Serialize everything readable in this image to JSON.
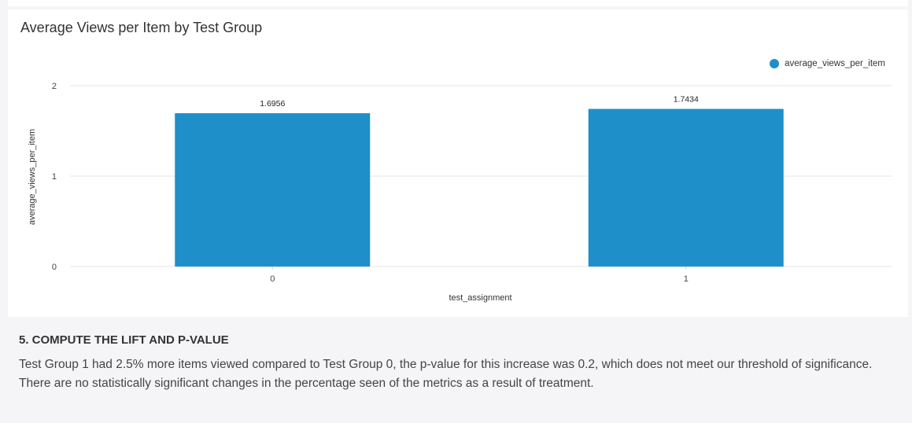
{
  "chart_data": {
    "type": "bar",
    "title": "Average Views per Item by Test Group",
    "xlabel": "test_assignment",
    "ylabel": "average_views_per_item",
    "categories": [
      "0",
      "1"
    ],
    "series": [
      {
        "name": "average_views_per_item",
        "values": [
          1.6956,
          1.7434
        ]
      }
    ],
    "data_labels": [
      "1.6956",
      "1.7434"
    ],
    "ylim": [
      0,
      2
    ],
    "yticks": [
      "0",
      "1",
      "2"
    ],
    "grid": true,
    "legend_position": "top-right",
    "bar_color": "#1f8fc9"
  },
  "section": {
    "title": "5. COMPUTE THE LIFT AND P-VALUE",
    "body": "Test Group 1 had 2.5% more items viewed compared to Test Group 0, the p-value for this increase was 0.2, which does not meet our threshold of significance. There are no statistically significant changes in the percentage seen of the metrics as a result of treatment."
  }
}
